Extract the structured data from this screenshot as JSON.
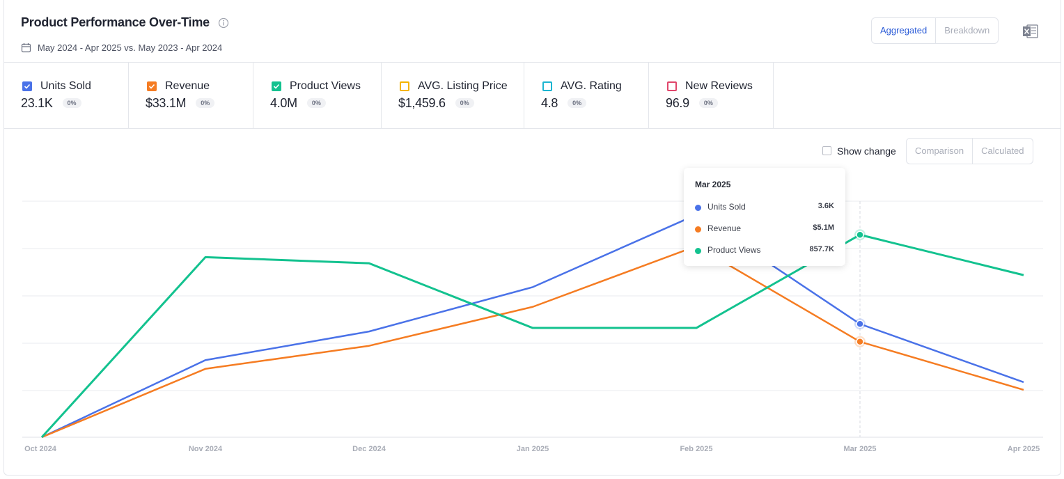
{
  "header": {
    "title": "Product Performance Over-Time",
    "date_range": "May 2024 - Apr 2025 vs. May 2023 - Apr 2024",
    "view_toggle": [
      "Aggregated",
      "Breakdown"
    ]
  },
  "metrics": [
    {
      "name": "Units Sold",
      "value": "23.1K",
      "change": "0%",
      "color": "#4a72e8",
      "checked": true
    },
    {
      "name": "Revenue",
      "value": "$33.1M",
      "change": "0%",
      "color": "#f57c22",
      "checked": true
    },
    {
      "name": "Product Views",
      "value": "4.0M",
      "change": "0%",
      "color": "#13c28f",
      "checked": true
    },
    {
      "name": "AVG. Listing Price",
      "value": "$1,459.6",
      "change": "0%",
      "color": "#f5b400",
      "checked": false
    },
    {
      "name": "AVG. Rating",
      "value": "4.8",
      "change": "0%",
      "color": "#1cb5d1",
      "checked": false
    },
    {
      "name": "New Reviews",
      "value": "96.9",
      "change": "0%",
      "color": "#e0466b",
      "checked": false
    }
  ],
  "controls": {
    "show_change": "Show change",
    "mode_toggle": [
      "Comparison",
      "Calculated"
    ]
  },
  "chart_data": {
    "type": "line",
    "categories": [
      "Oct 2024",
      "Nov 2024",
      "Dec 2024",
      "Jan 2025",
      "Feb 2025",
      "Mar 2025",
      "Apr 2025"
    ],
    "series": [
      {
        "name": "Units Sold",
        "color": "#4a72e8",
        "ylim": [
          0,
          7500
        ],
        "values": [
          0,
          2450,
          3360,
          4770,
          7070,
          3600,
          1750
        ],
        "value_labels": [
          null,
          null,
          null,
          null,
          null,
          "3.6K",
          null
        ]
      },
      {
        "name": "Revenue",
        "color": "#f57c22",
        "ylim": [
          0,
          12600000
        ],
        "values": [
          0,
          3650000,
          4880000,
          6960000,
          10200000,
          5100000,
          2530000
        ],
        "value_labels": [
          null,
          null,
          null,
          null,
          null,
          "$5.1M",
          null
        ]
      },
      {
        "name": "Product Views",
        "color": "#13c28f",
        "ylim": [
          0,
          1000000
        ],
        "values": [
          0,
          763000,
          737000,
          463000,
          463000,
          857700,
          687000
        ],
        "value_labels": [
          null,
          null,
          null,
          null,
          null,
          "857.7K",
          null
        ]
      }
    ]
  }
}
